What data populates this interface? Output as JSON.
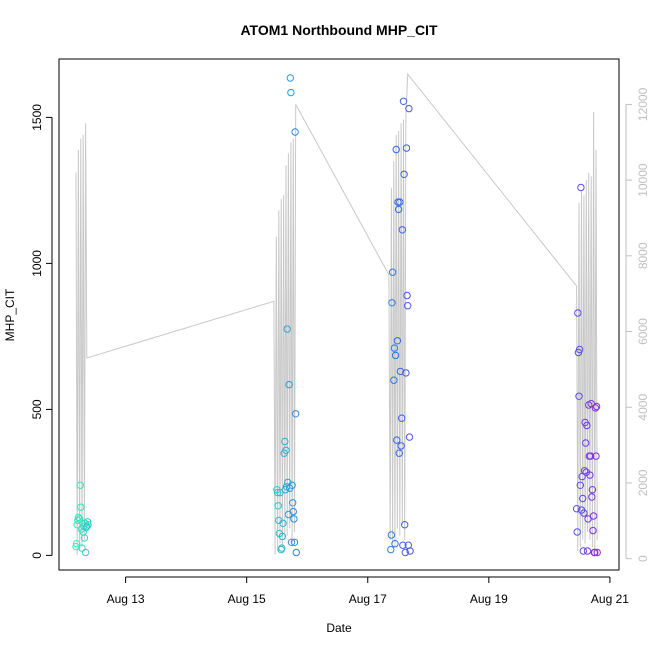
{
  "chart_data": {
    "type": "scatter",
    "title": "ATOM1 Northbound MHP_CIT",
    "xlabel": "Date",
    "ylabel": "MHP_CIT",
    "x_ticks": [
      {
        "value": 13,
        "label": "Aug 13"
      },
      {
        "value": 15,
        "label": "Aug 15"
      },
      {
        "value": 17,
        "label": "Aug 17"
      },
      {
        "value": 19,
        "label": "Aug 19"
      },
      {
        "value": 21,
        "label": "Aug 21"
      }
    ],
    "xlim": [
      11.9,
      21.15
    ],
    "ylim": [
      -50,
      1700
    ],
    "y_ticks": [
      0,
      500,
      1000,
      1500
    ],
    "y2lim": [
      -300,
      13200
    ],
    "y2_ticks": [
      0,
      2000,
      4000,
      6000,
      8000,
      10000,
      12000
    ],
    "grid": false,
    "colors": {
      "points_start": "#35f0b8",
      "points_mid": "#2c6ee8",
      "points_end": "#8a2be2",
      "secondary_line": "#c8c8c8"
    },
    "series": [
      {
        "axis": "left",
        "style": "points",
        "points": [
          [
            12.18,
            30
          ],
          [
            12.19,
            40
          ],
          [
            12.2,
            105
          ],
          [
            12.21,
            120
          ],
          [
            12.22,
            130
          ],
          [
            12.24,
            125
          ],
          [
            12.25,
            240
          ],
          [
            12.26,
            165
          ],
          [
            12.27,
            90
          ],
          [
            12.28,
            25
          ],
          [
            12.3,
            80
          ],
          [
            12.31,
            100
          ],
          [
            12.32,
            60
          ],
          [
            12.33,
            110
          ],
          [
            12.34,
            10
          ],
          [
            12.35,
            95
          ],
          [
            12.36,
            100
          ],
          [
            12.37,
            115
          ],
          [
            12.38,
            105
          ],
          [
            15.5,
            225
          ],
          [
            15.51,
            215
          ],
          [
            15.52,
            170
          ],
          [
            15.53,
            120
          ],
          [
            15.54,
            75
          ],
          [
            15.55,
            215
          ],
          [
            15.57,
            20
          ],
          [
            15.58,
            25
          ],
          [
            15.59,
            65
          ],
          [
            15.6,
            110
          ],
          [
            15.62,
            350
          ],
          [
            15.63,
            390
          ],
          [
            15.64,
            225
          ],
          [
            15.65,
            360
          ],
          [
            15.66,
            235
          ],
          [
            15.67,
            775
          ],
          [
            15.68,
            250
          ],
          [
            15.69,
            140
          ],
          [
            15.7,
            585
          ],
          [
            15.71,
            230
          ],
          [
            15.72,
            1635
          ],
          [
            15.73,
            1585
          ],
          [
            15.74,
            45
          ],
          [
            15.75,
            240
          ],
          [
            15.76,
            180
          ],
          [
            15.77,
            150
          ],
          [
            15.78,
            125
          ],
          [
            15.79,
            45
          ],
          [
            15.8,
            1450
          ],
          [
            15.81,
            485
          ],
          [
            15.82,
            10
          ],
          [
            17.38,
            20
          ],
          [
            17.39,
            70
          ],
          [
            17.4,
            865
          ],
          [
            17.41,
            970
          ],
          [
            17.43,
            600
          ],
          [
            17.44,
            710
          ],
          [
            17.45,
            40
          ],
          [
            17.46,
            685
          ],
          [
            17.47,
            1390
          ],
          [
            17.48,
            395
          ],
          [
            17.49,
            735
          ],
          [
            17.5,
            1210
          ],
          [
            17.51,
            1185
          ],
          [
            17.52,
            350
          ],
          [
            17.53,
            1210
          ],
          [
            17.54,
            630
          ],
          [
            17.55,
            375
          ],
          [
            17.56,
            470
          ],
          [
            17.57,
            1115
          ],
          [
            17.58,
            35
          ],
          [
            17.59,
            1555
          ],
          [
            17.6,
            1305
          ],
          [
            17.61,
            105
          ],
          [
            17.62,
            10
          ],
          [
            17.63,
            625
          ],
          [
            17.64,
            1395
          ],
          [
            17.65,
            890
          ],
          [
            17.66,
            855
          ],
          [
            17.67,
            35
          ],
          [
            17.68,
            1530
          ],
          [
            17.69,
            405
          ],
          [
            17.7,
            15
          ],
          [
            20.45,
            160
          ],
          [
            20.46,
            80
          ],
          [
            20.47,
            830
          ],
          [
            20.48,
            695
          ],
          [
            20.49,
            545
          ],
          [
            20.5,
            705
          ],
          [
            20.51,
            240
          ],
          [
            20.52,
            1260
          ],
          [
            20.53,
            155
          ],
          [
            20.54,
            270
          ],
          [
            20.55,
            195
          ],
          [
            20.56,
            15
          ],
          [
            20.57,
            145
          ],
          [
            20.58,
            290
          ],
          [
            20.59,
            455
          ],
          [
            20.6,
            385
          ],
          [
            20.61,
            285
          ],
          [
            20.62,
            445
          ],
          [
            20.63,
            15
          ],
          [
            20.64,
            125
          ],
          [
            20.65,
            515
          ],
          [
            20.66,
            340
          ],
          [
            20.67,
            275
          ],
          [
            20.68,
            340
          ],
          [
            20.69,
            520
          ],
          [
            20.7,
            200
          ],
          [
            20.71,
            225
          ],
          [
            20.72,
            85
          ],
          [
            20.73,
            135
          ],
          [
            20.74,
            10
          ],
          [
            20.75,
            10
          ],
          [
            20.76,
            505
          ],
          [
            20.77,
            340
          ],
          [
            20.78,
            510
          ],
          [
            20.79,
            10
          ]
        ]
      },
      {
        "axis": "right",
        "style": "line",
        "points": [
          [
            12.18,
            10200
          ],
          [
            12.2,
            100
          ],
          [
            12.22,
            10800
          ],
          [
            12.24,
            200
          ],
          [
            12.26,
            11100
          ],
          [
            12.28,
            300
          ],
          [
            12.3,
            11200
          ],
          [
            12.32,
            500
          ],
          [
            12.34,
            11500
          ],
          [
            12.36,
            5300
          ],
          [
            15.45,
            6800
          ],
          [
            15.47,
            100
          ],
          [
            15.49,
            8500
          ],
          [
            15.51,
            200
          ],
          [
            15.53,
            9200
          ],
          [
            15.55,
            400
          ],
          [
            15.57,
            9500
          ],
          [
            15.59,
            300
          ],
          [
            15.61,
            9600
          ],
          [
            15.63,
            500
          ],
          [
            15.65,
            10400
          ],
          [
            15.67,
            600
          ],
          [
            15.69,
            10700
          ],
          [
            15.71,
            800
          ],
          [
            15.73,
            11000
          ],
          [
            15.75,
            400
          ],
          [
            15.77,
            11100
          ],
          [
            15.79,
            700
          ],
          [
            15.81,
            12000
          ],
          [
            17.35,
            7500
          ],
          [
            17.37,
            500
          ],
          [
            17.39,
            9800
          ],
          [
            17.41,
            400
          ],
          [
            17.43,
            10500
          ],
          [
            17.45,
            300
          ],
          [
            17.47,
            11200
          ],
          [
            17.49,
            800
          ],
          [
            17.51,
            11300
          ],
          [
            17.53,
            600
          ],
          [
            17.55,
            11500
          ],
          [
            17.57,
            900
          ],
          [
            17.59,
            11600
          ],
          [
            17.61,
            500
          ],
          [
            17.63,
            11700
          ],
          [
            17.66,
            12800
          ],
          [
            20.45,
            7200
          ],
          [
            20.47,
            200
          ],
          [
            20.49,
            9400
          ],
          [
            20.51,
            300
          ],
          [
            20.53,
            9700
          ],
          [
            20.55,
            500
          ],
          [
            20.57,
            9600
          ],
          [
            20.59,
            400
          ],
          [
            20.61,
            10000
          ],
          [
            20.63,
            700
          ],
          [
            20.65,
            10200
          ],
          [
            20.67,
            500
          ],
          [
            20.69,
            10100
          ],
          [
            20.71,
            300
          ],
          [
            20.73,
            11800
          ],
          [
            20.75,
            100
          ],
          [
            20.77,
            10800
          ],
          [
            20.79,
            500
          ]
        ]
      }
    ]
  }
}
